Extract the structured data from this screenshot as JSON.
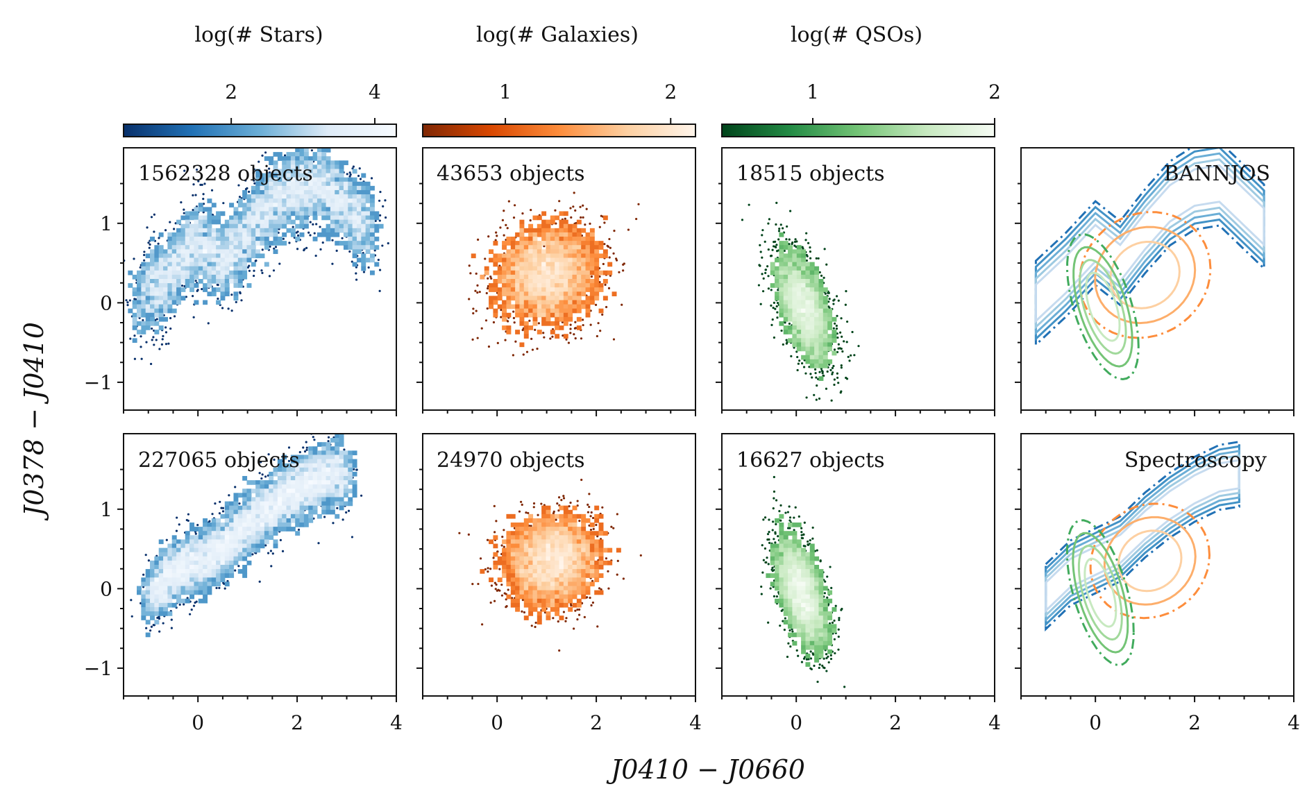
{
  "chart_data": {
    "type": "scatter",
    "xlabel": "J0410 − J0660",
    "ylabel": "J0378 − J0410",
    "xlim": [
      -1.5,
      4.0
    ],
    "ylim": [
      -1.35,
      1.95
    ],
    "xticks": [
      "0",
      "2",
      "4"
    ],
    "yticks": [
      "1",
      "0",
      "−1"
    ],
    "colorbars": [
      {
        "label": "log(# Stars)",
        "min": 0.5,
        "max": 4.3,
        "ticks": [
          "2",
          "4"
        ],
        "cmap": [
          "#08306b",
          "#2171b5",
          "#6baed6",
          "#deebf7",
          "#f7fbff"
        ]
      },
      {
        "label": "log(# Galaxies)",
        "min": 0.5,
        "max": 2.15,
        "ticks": [
          "1",
          "2"
        ],
        "cmap": [
          "#7f2704",
          "#d94801",
          "#fd8d3c",
          "#fdd0a2",
          "#fff5eb"
        ]
      },
      {
        "label": "log(# QSOs)",
        "min": 0.5,
        "max": 2.0,
        "ticks": [
          "1",
          "2"
        ],
        "cmap": [
          "#00441b",
          "#238b45",
          "#74c476",
          "#c7e9c0",
          "#f7fcf5"
        ]
      }
    ],
    "rows": [
      {
        "name": "BANNJOS",
        "counts": [
          "1562328 objects",
          "43653 objects",
          "18515 objects"
        ],
        "density": [
          {
            "class": "Stars",
            "curve": [
              [
                -1.2,
                0.0
              ],
              [
                -0.6,
                0.35
              ],
              [
                0.0,
                0.75
              ],
              [
                0.5,
                0.5
              ],
              [
                1.0,
                0.9
              ],
              [
                1.5,
                1.25
              ],
              [
                2.0,
                1.45
              ],
              [
                2.5,
                1.5
              ],
              [
                3.0,
                1.2
              ],
              [
                3.5,
                0.9
              ]
            ],
            "spread": 0.22
          },
          {
            "class": "Galaxies",
            "center": [
              1.0,
              0.35
            ],
            "sigma": [
              0.55,
              0.33
            ],
            "rho": 0.1
          },
          {
            "class": "QSOs",
            "center": [
              0.15,
              -0.05
            ],
            "sigma": [
              0.3,
              0.38
            ],
            "rho": -0.55
          }
        ],
        "contour_label": "BANNJOS"
      },
      {
        "name": "Spectroscopy",
        "counts": [
          "227065 objects",
          "24970 objects",
          "16627 objects"
        ],
        "density": [
          {
            "class": "Stars",
            "curve": [
              [
                -1.0,
                -0.1
              ],
              [
                -0.5,
                0.2
              ],
              [
                0.0,
                0.35
              ],
              [
                0.5,
                0.5
              ],
              [
                1.0,
                0.8
              ],
              [
                1.5,
                1.05
              ],
              [
                2.0,
                1.25
              ],
              [
                2.5,
                1.4
              ],
              [
                3.0,
                1.45
              ]
            ],
            "spread": 0.17
          },
          {
            "class": "Galaxies",
            "center": [
              1.1,
              0.35
            ],
            "sigma": [
              0.5,
              0.3
            ],
            "rho": 0.1
          },
          {
            "class": "QSOs",
            "center": [
              0.1,
              -0.05
            ],
            "sigma": [
              0.28,
              0.38
            ],
            "rho": -0.55
          }
        ],
        "contour_label": "Spectroscopy"
      }
    ],
    "contour_colors": {
      "Stars": [
        "#2171b5",
        "#4292c6",
        "#6baed6",
        "#9ecae1",
        "#c6dbef"
      ],
      "Galaxies": [
        "#fd8d3c",
        "#fdae6b",
        "#fdd0a2"
      ],
      "QSOs": [
        "#41ab5d",
        "#74c476",
        "#a1d99b",
        "#c7e9c0"
      ]
    }
  }
}
